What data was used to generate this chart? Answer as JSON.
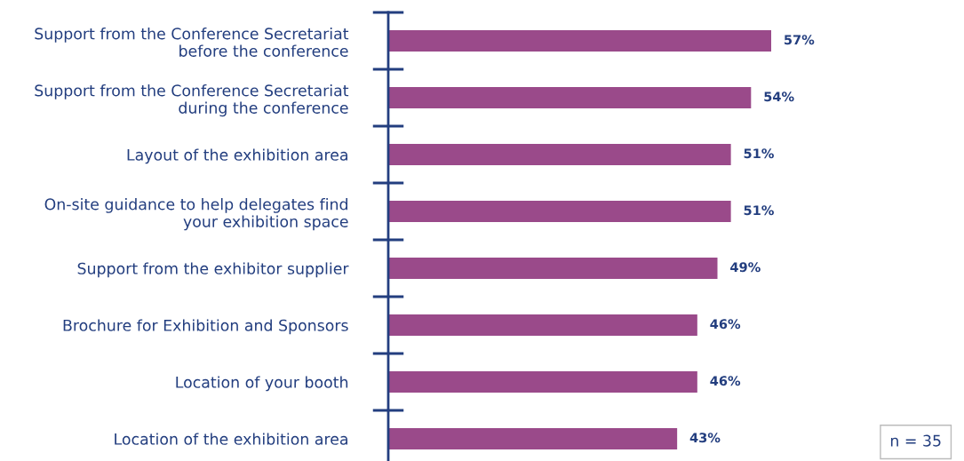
{
  "chart_data": {
    "type": "bar",
    "orientation": "horizontal",
    "categories": [
      "Support from the Conference Secretariat\nbefore the conference",
      "Support from the Conference Secretariat\nduring the conference",
      "Layout of the exhibition area",
      "On-site guidance to help delegates find\nyour exhibition space",
      "Support from the exhibitor supplier",
      "Brochure for Exhibition and Sponsors",
      "Location of your booth",
      "Location of the exhibition area"
    ],
    "values": [
      57,
      54,
      51,
      51,
      49,
      46,
      46,
      43
    ],
    "value_labels": [
      "57%",
      "54%",
      "51%",
      "51%",
      "49%",
      "46%",
      "46%",
      "43%"
    ],
    "color": "#9a4a8a",
    "annotations": [
      "n = 35"
    ],
    "grid": false,
    "tick_labels": "y"
  }
}
